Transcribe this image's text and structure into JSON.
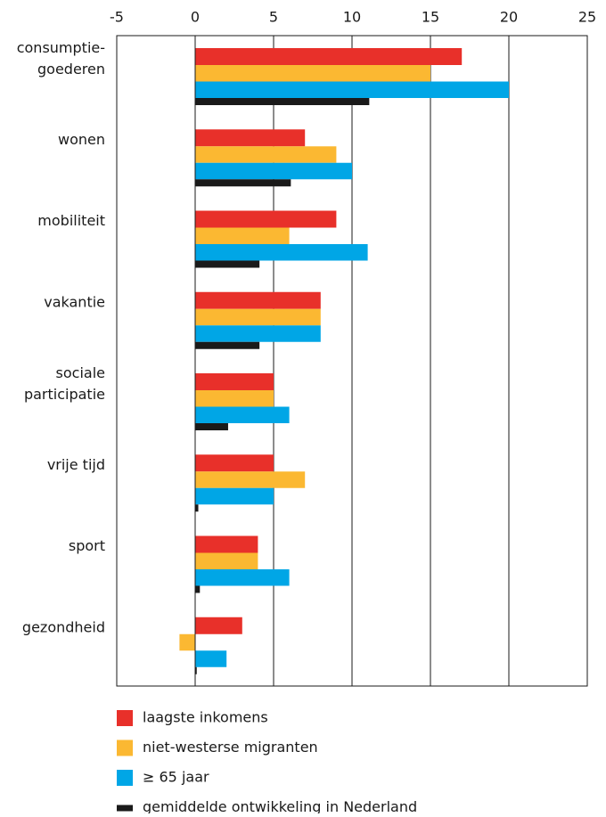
{
  "chart_data": {
    "type": "bar",
    "orientation": "horizontal",
    "categories": [
      "consumptie-\ngoederen",
      "wonen",
      "mobiliteit",
      "vakantie",
      "sociale\nparticipatie",
      "vrije tijd",
      "sport",
      "gezondheid"
    ],
    "series": [
      {
        "name": "laagste inkomens",
        "color": "#e8302a",
        "values": [
          17,
          7,
          9,
          8,
          5,
          5,
          4,
          3
        ]
      },
      {
        "name": "niet-westerse migranten",
        "color": "#fbb832",
        "values": [
          15,
          9,
          6,
          8,
          5,
          7,
          4,
          -1
        ]
      },
      {
        "name": "≥ 65 jaar",
        "color": "#00a6e6",
        "values": [
          20,
          10,
          11,
          8,
          6,
          5,
          6,
          2
        ]
      },
      {
        "name": "gemiddelde ontwikkeling in Nederland",
        "color": "#1a1a1a",
        "values": [
          11.1,
          6.1,
          4.1,
          4.1,
          2.1,
          0.2,
          0.3,
          0.1
        ]
      }
    ],
    "xlim": [
      -5,
      25
    ],
    "xticks": [
      -5,
      0,
      5,
      10,
      15,
      20,
      25
    ],
    "grid": true
  }
}
